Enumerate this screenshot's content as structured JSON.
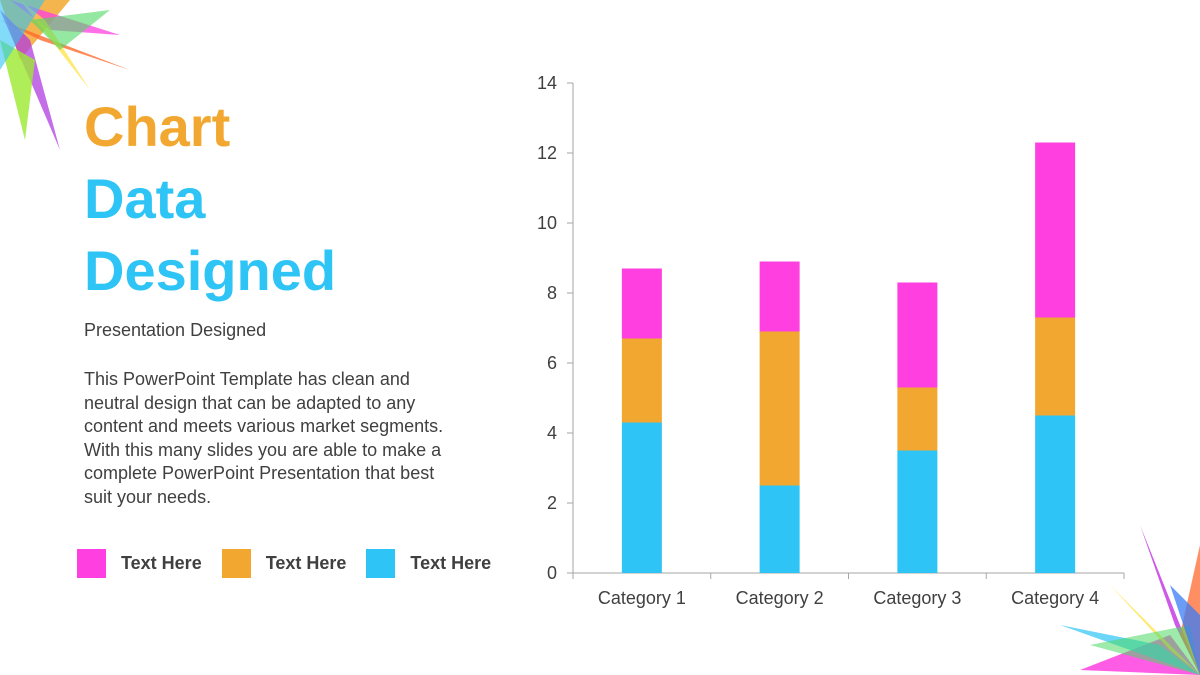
{
  "slide": {
    "title_lines": [
      "Chart",
      "Data",
      "Designed"
    ],
    "title_colors": [
      "#F2A830",
      "#2EC4F5",
      "#2EC4F5"
    ],
    "subtitle": "Presentation Designed",
    "body": "This PowerPoint Template has clean and neutral design that can be adapted to any content and meets various market segments. With this many slides you are able to make a complete PowerPoint Presentation that best suit your needs."
  },
  "legend": {
    "items": [
      {
        "label": "Text Here",
        "color": "#FF3FE0"
      },
      {
        "label": "Text Here",
        "color": "#F2A830"
      },
      {
        "label": "Text Here",
        "color": "#2EC4F5"
      }
    ]
  },
  "chart_data": {
    "type": "bar",
    "stacked": true,
    "categories": [
      "Category 1",
      "Category 2",
      "Category 3",
      "Category 4"
    ],
    "series": [
      {
        "values": [
          4.3,
          2.5,
          3.5,
          4.5
        ],
        "color": "#2EC4F5"
      },
      {
        "values": [
          2.4,
          4.4,
          1.8,
          2.8
        ],
        "color": "#F2A830"
      },
      {
        "values": [
          2.0,
          2.0,
          3.0,
          5.0
        ],
        "color": "#FF3FE0"
      }
    ],
    "ylim": [
      0,
      14
    ],
    "yticks": [
      0,
      2,
      4,
      6,
      8,
      10,
      12,
      14
    ],
    "grid": false,
    "legend_position": "bottom-left"
  }
}
